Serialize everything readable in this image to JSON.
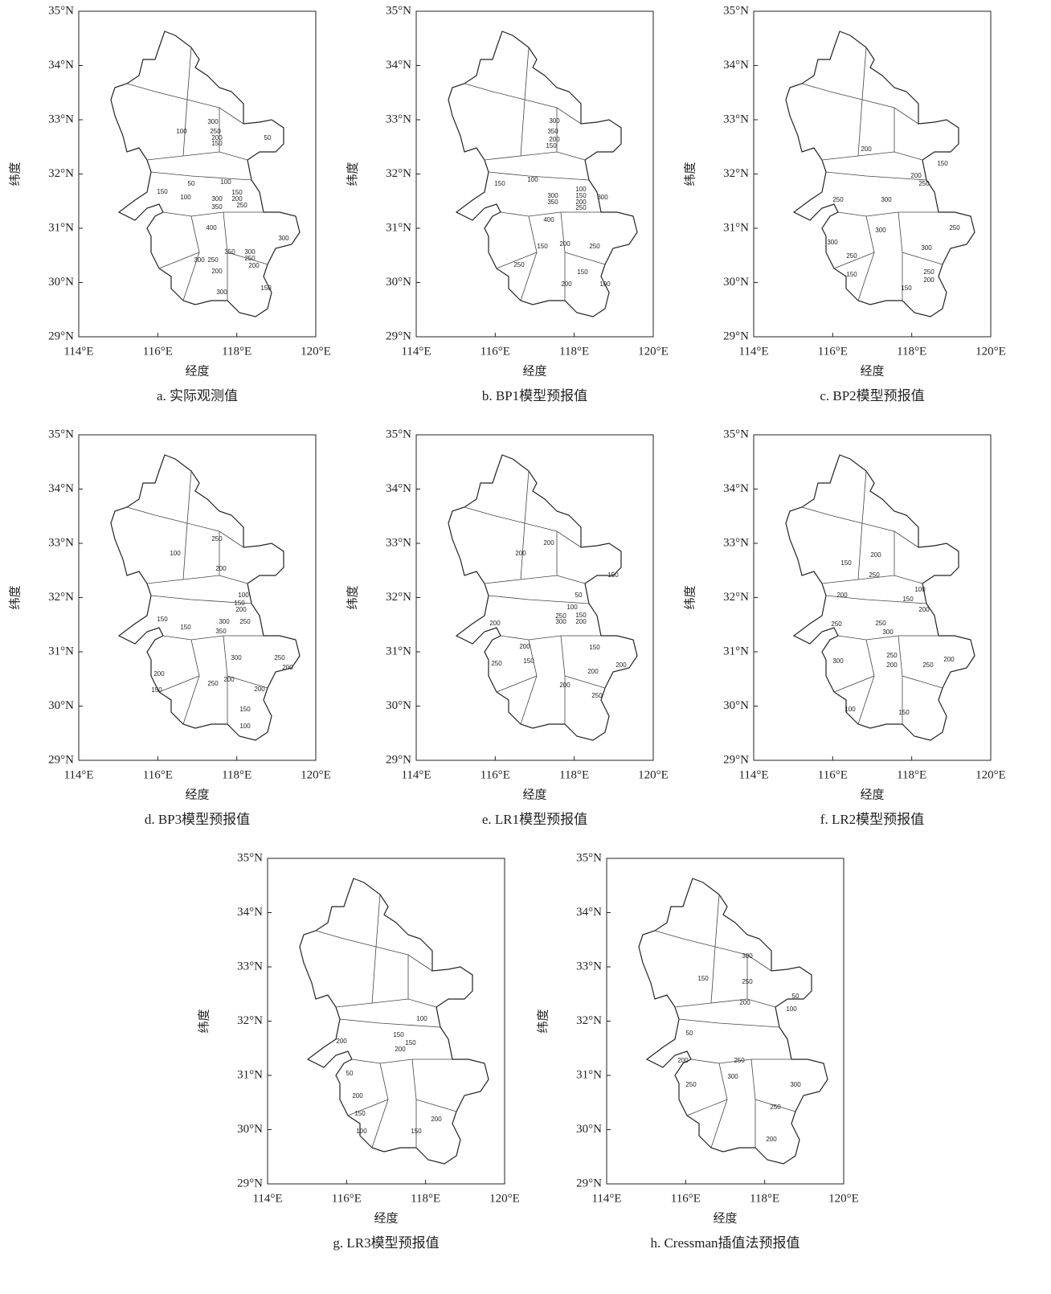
{
  "axes": {
    "xlabel": "经度",
    "ylabel": "纬度",
    "xlim": [
      114,
      120
    ],
    "ylim": [
      29,
      35
    ],
    "xticks": [
      {
        "value": 114,
        "label": "114°E"
      },
      {
        "value": 116,
        "label": "116°E"
      },
      {
        "value": 118,
        "label": "118°E"
      },
      {
        "value": 120,
        "label": "120°E"
      }
    ],
    "yticks": [
      {
        "value": 29,
        "label": "29°N"
      },
      {
        "value": 30,
        "label": "30°N"
      },
      {
        "value": 31,
        "label": "31°N"
      },
      {
        "value": 32,
        "label": "32°N"
      },
      {
        "value": 33,
        "label": "33°N"
      },
      {
        "value": 34,
        "label": "34°N"
      },
      {
        "value": 35,
        "label": "35°N"
      }
    ]
  },
  "panels": [
    {
      "caption": "a. 实际观测值",
      "contour_labels": [
        "300",
        "250",
        "200",
        "150",
        "100",
        "50",
        "50",
        "100",
        "150",
        "100",
        "150",
        "200",
        "250",
        "300",
        "350",
        "400",
        "350",
        "300",
        "250",
        "200",
        "250",
        "300",
        "200",
        "300",
        "150",
        "300"
      ]
    },
    {
      "caption": "b. BP1模型预报值",
      "contour_labels": [
        "100",
        "150",
        "300",
        "350",
        "200",
        "150",
        "300",
        "350",
        "400",
        "100",
        "150",
        "200",
        "250",
        "300",
        "150",
        "200",
        "250",
        "250",
        "200",
        "150",
        "100"
      ]
    },
    {
      "caption": "c. BP2模型预报值",
      "contour_labels": [
        "200",
        "150",
        "200",
        "250",
        "300",
        "250",
        "300",
        "300",
        "250",
        "150",
        "300",
        "250",
        "250",
        "200",
        "150"
      ]
    },
    {
      "caption": "d. BP3模型预报值",
      "contour_labels": [
        "250",
        "200",
        "100",
        "150",
        "150",
        "100",
        "150",
        "200",
        "250",
        "300",
        "350",
        "300",
        "250",
        "200",
        "200",
        "250",
        "200",
        "200",
        "150",
        "150",
        "100"
      ]
    },
    {
      "caption": "e. LR1模型预报值",
      "contour_labels": [
        "200",
        "200",
        "150",
        "50",
        "100",
        "150",
        "200",
        "300",
        "250",
        "200",
        "200",
        "150",
        "250",
        "150",
        "200",
        "200",
        "200",
        "250"
      ]
    },
    {
      "caption": "f. LR2模型预报值",
      "contour_labels": [
        "200",
        "150",
        "250",
        "100",
        "150",
        "200",
        "200",
        "250",
        "250",
        "300",
        "250",
        "200",
        "250",
        "200",
        "300",
        "100",
        "150"
      ]
    },
    {
      "caption": "g. LR3模型预报值",
      "contour_labels": [
        "150",
        "100",
        "150",
        "200",
        "200",
        "50",
        "200",
        "150",
        "100",
        "150",
        "200"
      ]
    },
    {
      "caption": "h. Cressman插值法预报值",
      "contour_labels": [
        "300",
        "250",
        "200",
        "150",
        "50",
        "100",
        "50",
        "200",
        "250",
        "300",
        "250",
        "300",
        "250",
        "200"
      ]
    }
  ]
}
